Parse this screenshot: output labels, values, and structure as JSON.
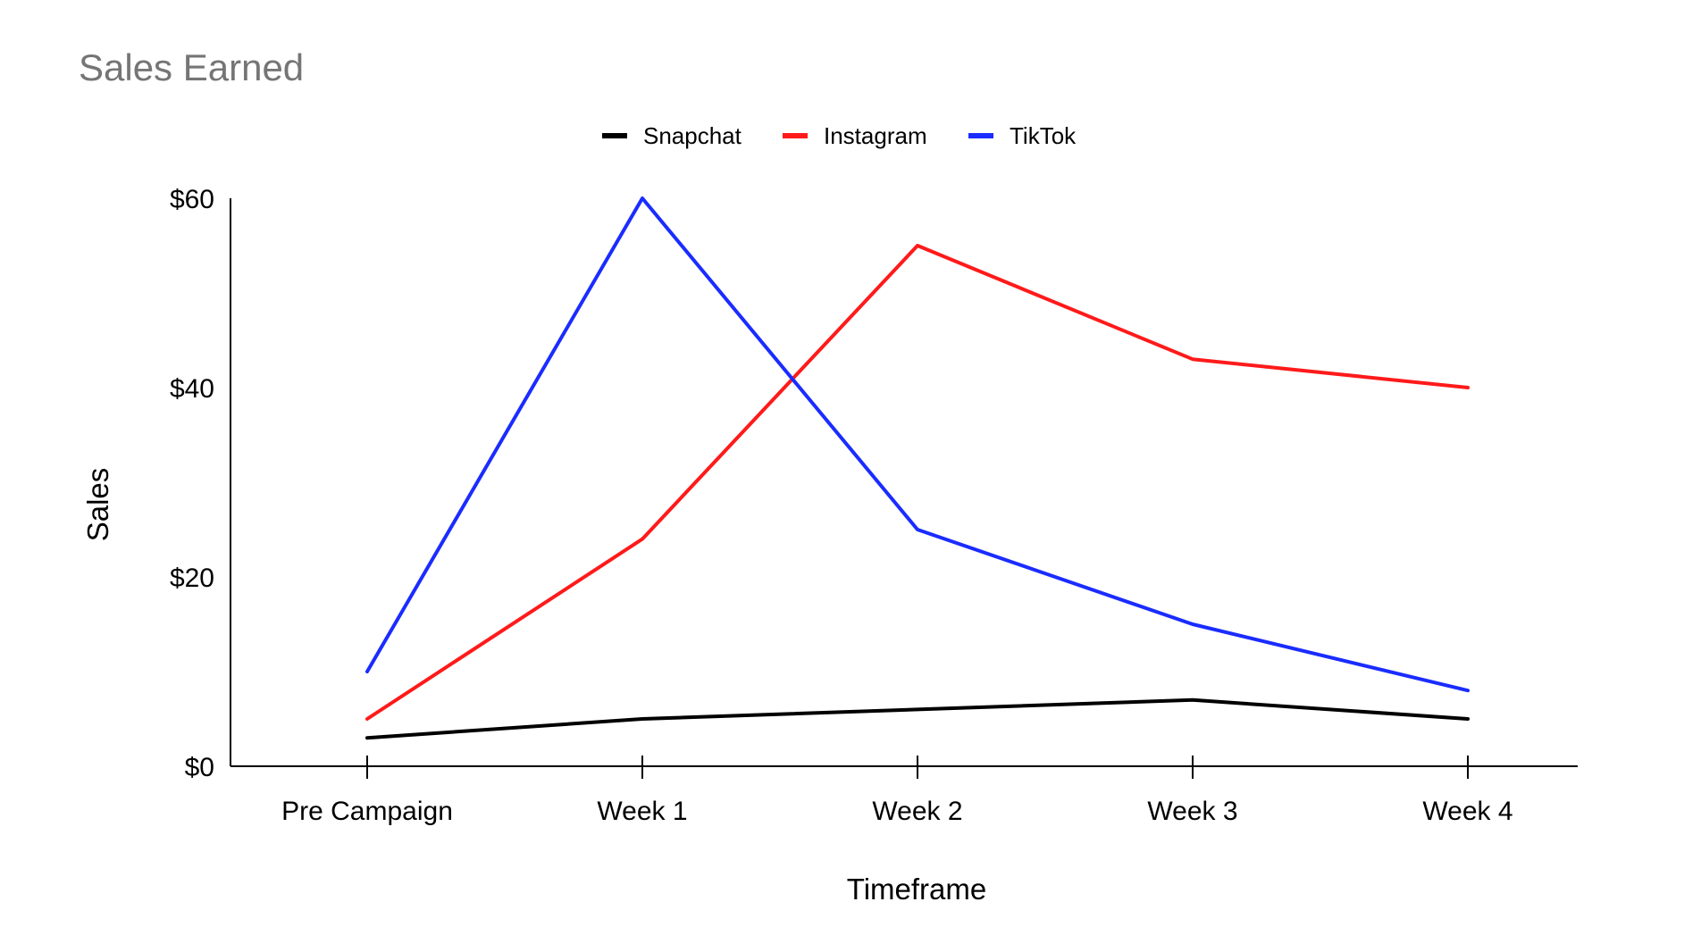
{
  "chart_data": {
    "type": "line",
    "title": "Sales Earned",
    "xlabel": "Timeframe",
    "ylabel": "Sales",
    "categories": [
      "Pre Campaign",
      "Week 1",
      "Week 2",
      "Week 3",
      "Week 4"
    ],
    "y_ticks": [
      "$0",
      "$20",
      "$40",
      "$60"
    ],
    "ylim": [
      0,
      60
    ],
    "grid": false,
    "legend_position": "top-center",
    "series": [
      {
        "name": "Snapchat",
        "color": "#000000",
        "values": [
          3,
          5,
          6,
          7,
          5
        ]
      },
      {
        "name": "Instagram",
        "color": "#ff1a1a",
        "values": [
          5,
          24,
          55,
          43,
          40
        ]
      },
      {
        "name": "TikTok",
        "color": "#1a2cff",
        "values": [
          10,
          60,
          25,
          15,
          8
        ]
      }
    ]
  }
}
